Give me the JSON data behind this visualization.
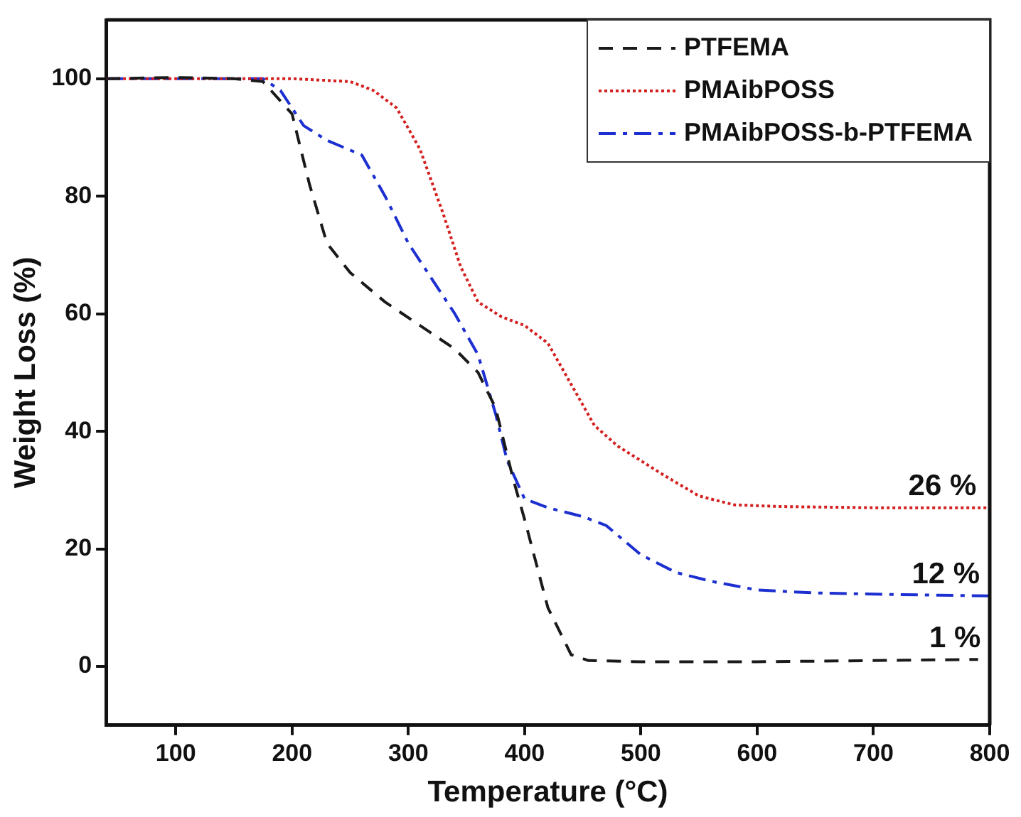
{
  "chart_data": {
    "type": "line",
    "xlabel": "Temperature (°C)",
    "ylabel": "Weight Loss (%)",
    "xlim": [
      40,
      800
    ],
    "ylim": [
      -10,
      110
    ],
    "xticks": [
      100,
      200,
      300,
      400,
      500,
      600,
      700,
      800
    ],
    "yticks": [
      0,
      20,
      40,
      60,
      80,
      100
    ],
    "grid": false,
    "legend": "top right",
    "marker": "none",
    "series": [
      {
        "name": "PTFEMA",
        "color": "#1a1a1a",
        "line_style": "dashed",
        "x": [
          40,
          100,
          150,
          175,
          200,
          215,
          230,
          250,
          280,
          310,
          340,
          360,
          375,
          390,
          400,
          420,
          440,
          455,
          500,
          600,
          700,
          790
        ],
        "values": [
          100,
          100.2,
          100,
          99.5,
          94,
          82,
          72,
          67,
          62,
          58,
          54,
          50,
          44,
          32,
          25,
          10,
          2,
          1,
          0.8,
          0.8,
          1,
          1.2
        ]
      },
      {
        "name": "PMAibPOSS",
        "color": "#d42020",
        "line_style": "dotted",
        "x": [
          40,
          200,
          250,
          270,
          290,
          310,
          330,
          345,
          360,
          380,
          400,
          420,
          440,
          460,
          480,
          500,
          520,
          550,
          580,
          620,
          700,
          800
        ],
        "values": [
          100,
          100,
          99.5,
          98,
          95,
          88,
          77,
          68,
          62,
          59.5,
          58,
          55,
          48,
          41,
          37.5,
          35,
          32.5,
          29,
          27.5,
          27.2,
          27,
          27
        ]
      },
      {
        "name": "PMAibPOSS-b-PTFEMA",
        "color": "#1c2fd0",
        "line_style": "dashdot",
        "x": [
          40,
          175,
          190,
          210,
          230,
          260,
          280,
          300,
          320,
          340,
          360,
          375,
          385,
          400,
          420,
          450,
          470,
          500,
          530,
          560,
          600,
          650,
          700,
          800
        ],
        "values": [
          100,
          100,
          98,
          92,
          89.5,
          87,
          80,
          72,
          66,
          60,
          53,
          43,
          35,
          28.5,
          27,
          25.5,
          24,
          19,
          16,
          14.5,
          13,
          12.5,
          12.3,
          12
        ]
      }
    ],
    "annotations": [
      {
        "text": "26 %",
        "x": 730,
        "y": 27
      },
      {
        "text": "12 %",
        "x": 733,
        "y": 12
      },
      {
        "text": "1 %",
        "x": 748,
        "y": 1.2
      }
    ]
  }
}
